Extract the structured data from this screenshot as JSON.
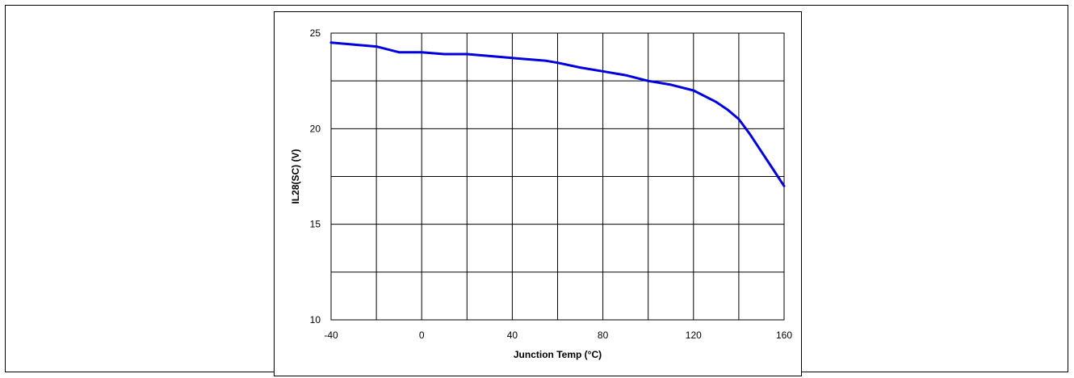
{
  "chart_data": {
    "type": "line",
    "title": "",
    "xlabel": "Junction Temp (°C)",
    "ylabel": "IL28(SC)  (V)",
    "xlim": [
      -40,
      160
    ],
    "ylim": [
      10,
      25
    ],
    "x_ticks": [
      -40,
      0,
      40,
      80,
      120,
      160
    ],
    "x_tick_labels": [
      "-40",
      "0",
      "40",
      "80",
      "120",
      "160"
    ],
    "x_gridlines": [
      -40,
      -20,
      0,
      20,
      40,
      60,
      80,
      100,
      120,
      140,
      160
    ],
    "y_ticks": [
      10,
      15,
      20,
      25
    ],
    "y_tick_labels": [
      "10",
      "15",
      "20",
      "25"
    ],
    "y_gridlines": [
      10,
      12.5,
      15,
      17.5,
      20,
      22.5,
      25
    ],
    "grid": true,
    "legend": "none",
    "series": [
      {
        "color": "#0000dd",
        "x": [
          -40,
          -20,
          -10,
          0,
          10,
          20,
          40,
          55,
          60,
          70,
          80,
          90,
          100,
          110,
          120,
          130,
          135,
          140,
          145,
          150,
          155,
          160
        ],
        "y": [
          24.5,
          24.3,
          24.0,
          24.0,
          23.9,
          23.9,
          23.7,
          23.55,
          23.45,
          23.2,
          23.0,
          22.8,
          22.5,
          22.3,
          22.0,
          21.4,
          21.0,
          20.5,
          19.7,
          18.8,
          17.9,
          17.0
        ]
      }
    ]
  }
}
